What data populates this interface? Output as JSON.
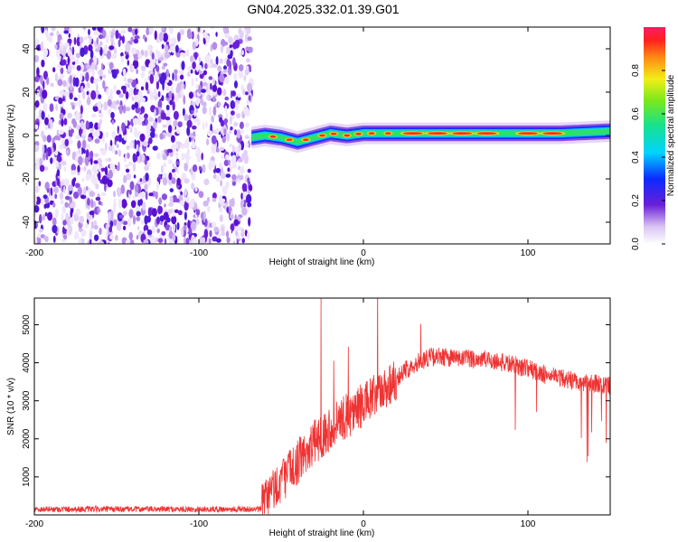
{
  "title": "GN04.2025.332.01.39.G01",
  "chart_data": [
    {
      "type": "heatmap",
      "xlabel": "Height of straight line (km)",
      "ylabel": "Frequency (Hz)",
      "xlim": [
        -200,
        150
      ],
      "ylim": [
        -50,
        50
      ],
      "xticks": [
        -200,
        -100,
        0,
        100
      ],
      "yticks": [
        -40,
        -20,
        0,
        20,
        40
      ],
      "noise_region_x": [
        -200,
        -68
      ],
      "signal_track": {
        "x": [
          -68,
          -60,
          -50,
          -40,
          -30,
          -20,
          -10,
          0,
          10,
          20,
          40,
          60,
          80,
          100,
          120,
          150
        ],
        "freq_hz": [
          -1,
          0,
          -1,
          -3,
          -1,
          1,
          0,
          1,
          1,
          1,
          1,
          1,
          1,
          1,
          1,
          2
        ]
      },
      "colorbar": {
        "label": "Normalized spectral amplitude",
        "range": [
          0,
          1
        ],
        "ticks": [
          0.0,
          0.2,
          0.4,
          0.6,
          0.8
        ]
      }
    },
    {
      "type": "line",
      "xlabel": "Height of straight line (km)",
      "ylabel": "SNR (10 * v/v)",
      "xlim": [
        -200,
        150
      ],
      "ylim": [
        0,
        5700
      ],
      "xticks": [
        -200,
        -100,
        0,
        100
      ],
      "yticks": [
        1000,
        2000,
        3000,
        4000,
        5000
      ],
      "color": "#ef3333",
      "envelope": {
        "x": [
          -200,
          -62,
          -60,
          -50,
          -40,
          -30,
          -20,
          -10,
          0,
          10,
          20,
          30,
          40,
          50,
          60,
          70,
          80,
          90,
          100,
          110,
          120,
          130,
          140,
          150
        ],
        "baseline": [
          150,
          150,
          400,
          900,
          1400,
          1900,
          2300,
          2600,
          2900,
          3200,
          3600,
          3950,
          4150,
          4150,
          4100,
          4100,
          4050,
          3950,
          3850,
          3700,
          3600,
          3500,
          3450,
          3400
        ]
      }
    }
  ]
}
